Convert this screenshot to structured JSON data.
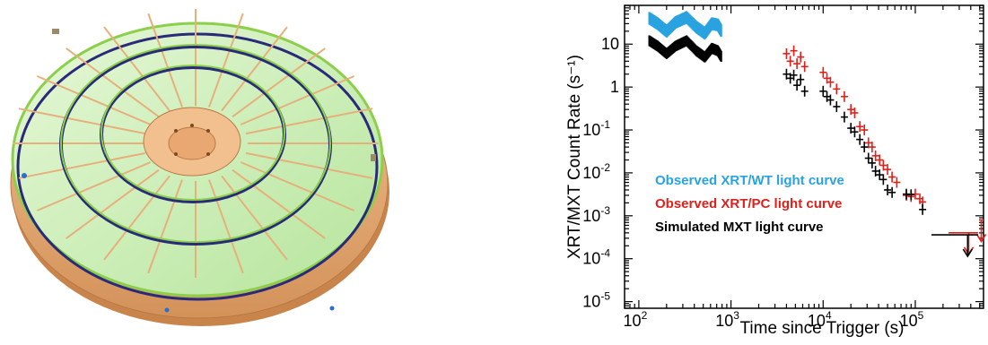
{
  "chart_data": {
    "type": "scatter",
    "title": "",
    "xlabel": "Time since Trigger (s)",
    "ylabel": "XRT/MXT Count Rate (s⁻¹)",
    "x_scale": "log",
    "y_scale": "log",
    "xlim": [
      70,
      550000
    ],
    "ylim": [
      7e-06,
      80
    ],
    "grid": false,
    "legend_position": "left-bottom",
    "x_ticks": [
      {
        "value": 100,
        "label": "10",
        "exp": "2"
      },
      {
        "value": 1000,
        "label": "10",
        "exp": "3"
      },
      {
        "value": 10000,
        "label": "10",
        "exp": "4"
      },
      {
        "value": 100000,
        "label": "10",
        "exp": "5"
      }
    ],
    "y_ticks": [
      {
        "value": 10,
        "label": "10",
        "exp": ""
      },
      {
        "value": 1,
        "label": "1",
        "exp": ""
      },
      {
        "value": 0.1,
        "label": "10",
        "exp": "-1"
      },
      {
        "value": 0.01,
        "label": "10",
        "exp": "-2"
      },
      {
        "value": 0.001,
        "label": "10",
        "exp": "-3"
      },
      {
        "value": 0.0001,
        "label": "10",
        "exp": "-4"
      },
      {
        "value": 1e-05,
        "label": "10",
        "exp": "-5"
      }
    ],
    "series": [
      {
        "name": "Observed XRT/WT light curve",
        "color": "#29a3e0",
        "style": "band",
        "points": [
          [
            130,
            40
          ],
          [
            160,
            30
          ],
          [
            200,
            20
          ],
          [
            250,
            32
          ],
          [
            330,
            42
          ],
          [
            420,
            25
          ],
          [
            520,
            18
          ],
          [
            620,
            30
          ],
          [
            720,
            28
          ],
          [
            790,
            20
          ]
        ]
      },
      {
        "name": "Observed XRT/PC light curve",
        "color": "#e0201b",
        "style": "errorbars",
        "points": [
          [
            4000,
            6
          ],
          [
            4400,
            4
          ],
          [
            4800,
            7
          ],
          [
            5200,
            3.5
          ],
          [
            5700,
            5
          ],
          [
            6300,
            3
          ],
          [
            10000,
            2.2
          ],
          [
            11000,
            1.6
          ],
          [
            12000,
            1.3
          ],
          [
            14000,
            0.9
          ],
          [
            17000,
            0.6
          ],
          [
            20000,
            0.3
          ],
          [
            22000,
            0.25
          ],
          [
            25000,
            0.12
          ],
          [
            28000,
            0.1
          ],
          [
            31000,
            0.05
          ],
          [
            34000,
            0.04
          ],
          [
            37000,
            0.025
          ],
          [
            41000,
            0.02
          ],
          [
            45000,
            0.015
          ],
          [
            50000,
            0.012
          ],
          [
            56000,
            0.008
          ],
          [
            63000,
            0.006
          ],
          [
            80000,
            0.003
          ],
          [
            90000,
            0.0028
          ],
          [
            100000,
            0.0032
          ],
          [
            112000,
            0.0025
          ],
          [
            120000,
            0.0021
          ]
        ]
      },
      {
        "name": "Simulated MXT light curve",
        "color": "#000000",
        "style": "errorbars",
        "points": [
          [
            4000,
            2
          ],
          [
            4400,
            1.6
          ],
          [
            4800,
            1.9
          ],
          [
            5200,
            1.1
          ],
          [
            5700,
            1.5
          ],
          [
            6300,
            0.8
          ],
          [
            10000,
            0.8
          ],
          [
            11000,
            0.6
          ],
          [
            12000,
            0.5
          ],
          [
            14000,
            0.35
          ],
          [
            17000,
            0.2
          ],
          [
            20000,
            0.11
          ],
          [
            22000,
            0.09
          ],
          [
            25000,
            0.06
          ],
          [
            28000,
            0.04
          ],
          [
            31000,
            0.022
          ],
          [
            34000,
            0.017
          ],
          [
            37000,
            0.011
          ],
          [
            41000,
            0.009
          ],
          [
            45000,
            0.007
          ],
          [
            50000,
            0.004
          ],
          [
            56000,
            0.0035
          ],
          [
            80000,
            0.0032
          ],
          [
            90000,
            0.0031
          ],
          [
            120000,
            0.0014
          ]
        ]
      }
    ],
    "upper_limits": [
      {
        "series": "Observed XRT/PC light curve",
        "x": 380000,
        "y": 0.0004,
        "xerr": [
          230000,
          480000
        ]
      },
      {
        "series": "Observed XRT/PC light curve",
        "x": 520000,
        "y": 0.0008,
        "xerr": [
          500000,
          550000
        ]
      },
      {
        "series": "Simulated MXT light curve",
        "x": 370000,
        "y": 0.00036,
        "xerr": [
          150000,
          480000
        ]
      }
    ]
  },
  "colors": {
    "wt": "#29a3e0",
    "pc": "#e0201b",
    "mxt": "#000000",
    "plate_copper": "#e9a871",
    "plate_copper_dark": "#c9844c",
    "panel_green": "#ccf0b8",
    "panel_edge": "#8ccf4a",
    "ring_blue": "#2a2a7a"
  },
  "illustration": {
    "icon": "mirror-module-assembly-icon"
  }
}
